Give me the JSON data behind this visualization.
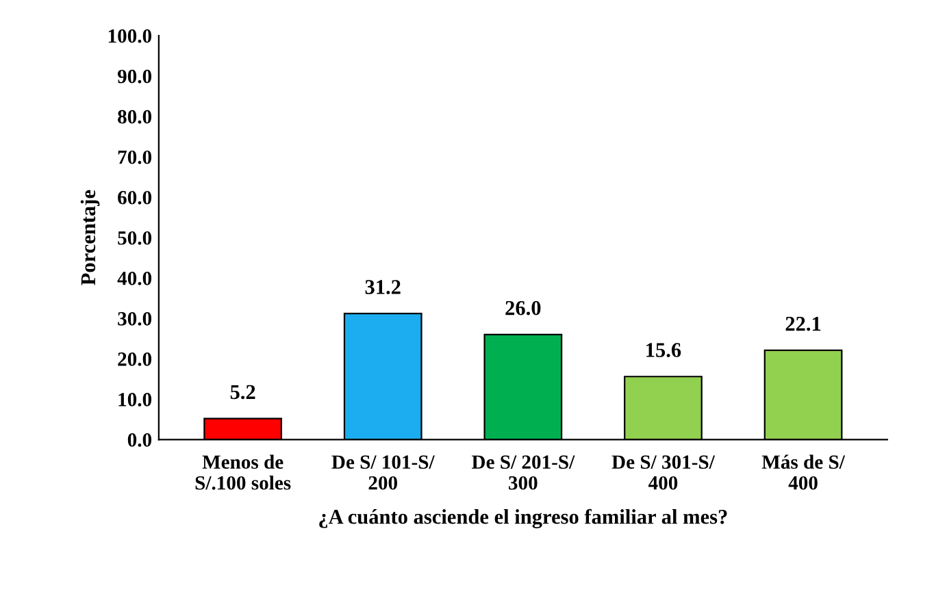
{
  "chart_data": {
    "type": "bar",
    "xlabel": "¿A cuánto asciende el ingreso familiar al mes?",
    "ylabel": "Porcentaje",
    "categories": [
      "Menos de\nS/.100 soles",
      "De S/ 101-S/\n200",
      "De S/ 201-S/\n300",
      "De S/ 301-S/\n400",
      "Más de S/\n400"
    ],
    "values": [
      5.2,
      31.2,
      26.0,
      15.6,
      22.1
    ],
    "colors": [
      "#ff0000",
      "#1cadf0",
      "#00b050",
      "#92d050",
      "#92d050"
    ],
    "value_labels": [
      "5.2",
      "31.2",
      "26.0",
      "15.6",
      "22.1"
    ],
    "ylim": [
      0,
      100
    ],
    "yticks": [
      {
        "value": 0,
        "label": "0.0"
      },
      {
        "value": 10,
        "label": "10.0"
      },
      {
        "value": 20,
        "label": "20.0"
      },
      {
        "value": 30,
        "label": "30.0"
      },
      {
        "value": 40,
        "label": "40.0"
      },
      {
        "value": 50,
        "label": "50.0"
      },
      {
        "value": 60,
        "label": "60.0"
      },
      {
        "value": 70,
        "label": "70.0"
      },
      {
        "value": 80,
        "label": "80.0"
      },
      {
        "value": 90,
        "label": "90.0"
      },
      {
        "value": 100,
        "label": "100.0"
      }
    ],
    "grid": false,
    "legend": false
  }
}
